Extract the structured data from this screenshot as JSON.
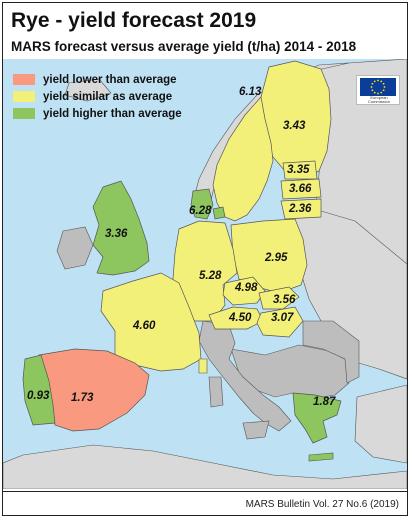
{
  "title": "Rye - yield forecast 2019",
  "subtitle": "MARS forecast versus average yield (t/ha) 2014 - 2018",
  "legend": [
    {
      "label": "yield lower than average",
      "color": "#f99a80"
    },
    {
      "label": "yield similar as average",
      "color": "#f3f07a"
    },
    {
      "label": "yield higher than average",
      "color": "#8dc55f"
    }
  ],
  "logo": {
    "text": "European Commission",
    "flag_color": "#0b3e99",
    "star_color": "#ffdd00"
  },
  "colors": {
    "sea": "#bfe1f4",
    "non_eu": "#d9d9d9",
    "no_data": "#bdbdbd",
    "border": "#555555"
  },
  "regions": [
    {
      "id": "finland",
      "value": "6.13",
      "category": "similar"
    },
    {
      "id": "sweden",
      "value": "3.43",
      "category": "similar"
    },
    {
      "id": "estonia",
      "value": "3.35",
      "category": "similar"
    },
    {
      "id": "latvia",
      "value": "3.66",
      "category": "similar"
    },
    {
      "id": "lithuania",
      "value": "2.36",
      "category": "similar"
    },
    {
      "id": "denmark",
      "value": "6.28",
      "category": "higher"
    },
    {
      "id": "united-kingdom",
      "value": "3.36",
      "category": "higher"
    },
    {
      "id": "poland",
      "value": "2.95",
      "category": "similar"
    },
    {
      "id": "germany",
      "value": "5.28",
      "category": "similar"
    },
    {
      "id": "czechia",
      "value": "4.98",
      "category": "similar"
    },
    {
      "id": "slovakia",
      "value": "3.56",
      "category": "similar"
    },
    {
      "id": "austria",
      "value": "4.50",
      "category": "similar"
    },
    {
      "id": "hungary",
      "value": "3.07",
      "category": "similar"
    },
    {
      "id": "france",
      "value": "4.60",
      "category": "similar"
    },
    {
      "id": "spain",
      "value": "1.73",
      "category": "lower"
    },
    {
      "id": "portugal",
      "value": "0.93",
      "category": "higher"
    },
    {
      "id": "greece",
      "value": "1.87",
      "category": "higher"
    }
  ],
  "footer": "MARS Bulletin Vol. 27 No.6 (2019)"
}
